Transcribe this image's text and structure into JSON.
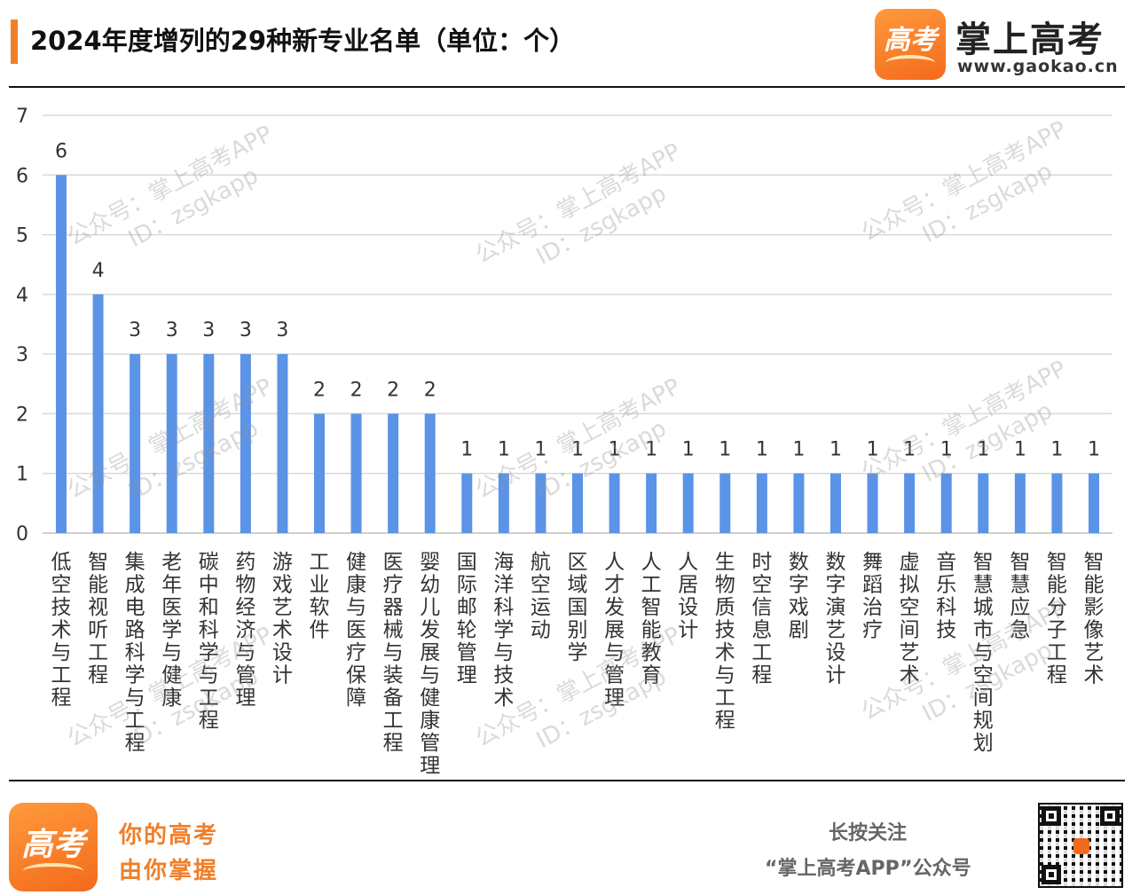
{
  "header": {
    "title": "2024年度增列的29种新专业名单（单位：个）",
    "brand_name": "掌上高考",
    "brand_url": "www.gaokao.cn",
    "logo_glyph": "高考"
  },
  "watermark": {
    "line1": "公众号：掌上高考APP",
    "line2": "ID：zsgkapp"
  },
  "footer": {
    "slogan_line1": "你的高考",
    "slogan_line2": "由你掌握",
    "follow_line1": "长按关注",
    "follow_line2": "“掌上高考APP”公众号"
  },
  "colors": {
    "accent": "#f07f2a",
    "bar": "#5b93e6",
    "grid": "#d9d9d9"
  },
  "chart_data": {
    "type": "bar",
    "title": "2024年度增列的29种新专业名单（单位：个）",
    "ylim": [
      0,
      7
    ],
    "yticks": [
      0,
      1,
      2,
      3,
      4,
      5,
      6,
      7
    ],
    "grid": true,
    "categories": [
      "低空技术与工程",
      "智能视听工程",
      "集成电路科学与工程",
      "老年医学与健康",
      "碳中和科学与工程",
      "药物经济与管理",
      "游戏艺术设计",
      "工业软件",
      "健康与医疗保障",
      "医疗器械与装备工程",
      "婴幼儿发展与健康管理",
      "国际邮轮管理",
      "海洋科学与技术",
      "航空运动",
      "区域国别学",
      "人才发展与管理",
      "人工智能教育",
      "人居设计",
      "生物质技术与工程",
      "时空信息工程",
      "数字戏剧",
      "数字演艺设计",
      "舞蹈治疗",
      "虚拟空间艺术",
      "音乐科技",
      "智慧城市与空间规划",
      "智慧应急",
      "智能分子工程",
      "智能影像艺术"
    ],
    "values": [
      6,
      4,
      3,
      3,
      3,
      3,
      3,
      2,
      2,
      2,
      2,
      1,
      1,
      1,
      1,
      1,
      1,
      1,
      1,
      1,
      1,
      1,
      1,
      1,
      1,
      1,
      1,
      1,
      1
    ]
  }
}
